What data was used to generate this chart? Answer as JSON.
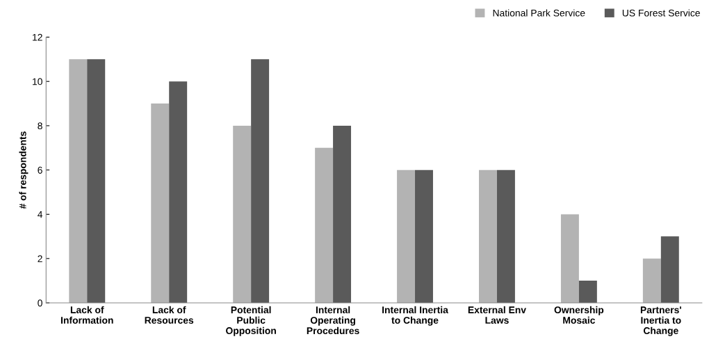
{
  "chart_data": {
    "type": "bar",
    "ylabel": "# of respondents",
    "categories": [
      "Lack of\nInformation",
      "Lack of\nResources",
      "Potential\nPublic\nOpposition",
      "Internal\nOperating\nProcedures",
      "Internal Inertia\nto Change",
      "External Env\nLaws",
      "Ownership\nMosaic",
      "Partners'\nInertia to\nChange"
    ],
    "series": [
      {
        "name": "National Park Service",
        "color": "#b3b3b3",
        "values": [
          11,
          9,
          8,
          7,
          6,
          6,
          4,
          2
        ]
      },
      {
        "name": "US Forest Service",
        "color": "#5a5a5a",
        "values": [
          11,
          10,
          11,
          8,
          6,
          6,
          1,
          3
        ]
      }
    ],
    "ylim": [
      0,
      12
    ],
    "yticks": [
      0,
      2,
      4,
      6,
      8,
      10,
      12
    ],
    "grid": false,
    "legend": "top right"
  }
}
